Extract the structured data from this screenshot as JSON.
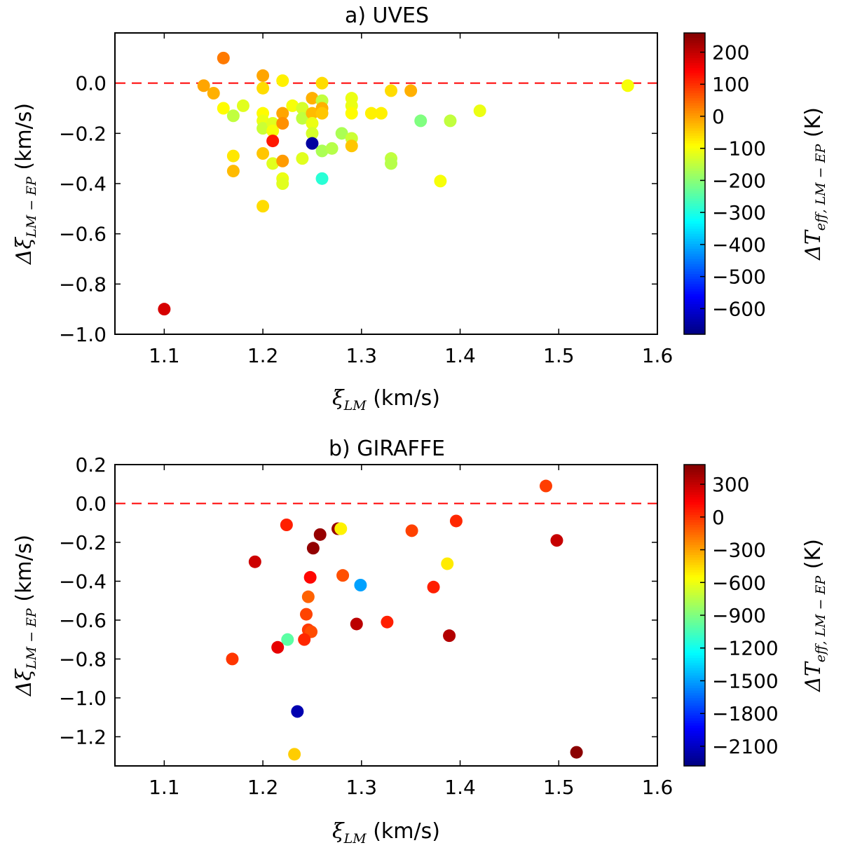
{
  "chart_data": [
    {
      "type": "scatter",
      "title": "a) UVES",
      "xlabel": "ξ_LM (km/s)",
      "xlabel_math": "ξ",
      "xlabel_math_sub": "LM",
      "xlabel_unit": " (km/s)",
      "ylabel_math": "Δξ",
      "ylabel_math_sub": "LM − EP",
      "ylabel_unit": " (km/s)",
      "xlim": [
        1.05,
        1.6
      ],
      "ylim": [
        -1.0,
        0.2
      ],
      "xticks": [
        1.1,
        1.2,
        1.3,
        1.4,
        1.5,
        1.6
      ],
      "xtick_labels": [
        "1.1",
        "1.2",
        "1.3",
        "1.4",
        "1.5",
        "1.6"
      ],
      "yticks": [
        -1.0,
        -0.8,
        -0.6,
        -0.4,
        -0.2,
        0.0
      ],
      "ytick_labels": [
        "−1.0",
        "−0.8",
        "−0.6",
        "−0.4",
        "−0.2",
        "0.0"
      ],
      "reference_line": {
        "y": 0.0,
        "style": "dashed",
        "color": "#ff0000"
      },
      "colorbar": {
        "label_math": "ΔT",
        "label_math_sub": "eff, LM − EP",
        "label_unit": " (K)",
        "colormap": "jet",
        "range": [
          -680,
          260
        ],
        "ticks": [
          200,
          100,
          0,
          -100,
          -200,
          -300,
          -400,
          -500,
          -600
        ],
        "tick_labels": [
          "200",
          "100",
          "0",
          "−100",
          "−200",
          "−300",
          "−400",
          "−500",
          "−600"
        ]
      },
      "points": [
        {
          "x": 1.16,
          "y": 0.1,
          "c": 30
        },
        {
          "x": 1.14,
          "y": -0.01,
          "c": -10
        },
        {
          "x": 1.15,
          "y": -0.04,
          "c": -20
        },
        {
          "x": 1.16,
          "y": -0.1,
          "c": -90
        },
        {
          "x": 1.17,
          "y": -0.13,
          "c": -150
        },
        {
          "x": 1.18,
          "y": -0.09,
          "c": -120
        },
        {
          "x": 1.17,
          "y": -0.29,
          "c": -70
        },
        {
          "x": 1.17,
          "y": -0.35,
          "c": -30
        },
        {
          "x": 1.1,
          "y": -0.9,
          "c": 180
        },
        {
          "x": 1.2,
          "y": 0.03,
          "c": -10
        },
        {
          "x": 1.2,
          "y": -0.02,
          "c": -60
        },
        {
          "x": 1.2,
          "y": -0.12,
          "c": -90
        },
        {
          "x": 1.2,
          "y": -0.15,
          "c": -110
        },
        {
          "x": 1.2,
          "y": -0.18,
          "c": -140
        },
        {
          "x": 1.21,
          "y": -0.16,
          "c": -120
        },
        {
          "x": 1.21,
          "y": -0.19,
          "c": -100
        },
        {
          "x": 1.2,
          "y": -0.28,
          "c": -40
        },
        {
          "x": 1.21,
          "y": -0.23,
          "c": 120
        },
        {
          "x": 1.21,
          "y": -0.32,
          "c": -120
        },
        {
          "x": 1.2,
          "y": -0.49,
          "c": -60
        },
        {
          "x": 1.22,
          "y": 0.01,
          "c": -80
        },
        {
          "x": 1.22,
          "y": -0.12,
          "c": -10
        },
        {
          "x": 1.22,
          "y": -0.16,
          "c": 10
        },
        {
          "x": 1.23,
          "y": -0.09,
          "c": -100
        },
        {
          "x": 1.22,
          "y": -0.31,
          "c": 0
        },
        {
          "x": 1.22,
          "y": -0.38,
          "c": -110
        },
        {
          "x": 1.22,
          "y": -0.4,
          "c": -120
        },
        {
          "x": 1.24,
          "y": -0.1,
          "c": -130
        },
        {
          "x": 1.24,
          "y": -0.14,
          "c": -150
        },
        {
          "x": 1.24,
          "y": -0.3,
          "c": -120
        },
        {
          "x": 1.25,
          "y": -0.06,
          "c": -20
        },
        {
          "x": 1.25,
          "y": -0.12,
          "c": -30
        },
        {
          "x": 1.25,
          "y": -0.16,
          "c": -110
        },
        {
          "x": 1.25,
          "y": -0.2,
          "c": -130
        },
        {
          "x": 1.25,
          "y": -0.24,
          "c": -650
        },
        {
          "x": 1.26,
          "y": 0.0,
          "c": -60
        },
        {
          "x": 1.26,
          "y": -0.07,
          "c": -150
        },
        {
          "x": 1.26,
          "y": -0.1,
          "c": -20
        },
        {
          "x": 1.26,
          "y": -0.12,
          "c": -40
        },
        {
          "x": 1.26,
          "y": -0.27,
          "c": -170
        },
        {
          "x": 1.26,
          "y": -0.38,
          "c": -290
        },
        {
          "x": 1.27,
          "y": -0.26,
          "c": -160
        },
        {
          "x": 1.28,
          "y": -0.2,
          "c": -170
        },
        {
          "x": 1.29,
          "y": -0.06,
          "c": -110
        },
        {
          "x": 1.29,
          "y": -0.09,
          "c": -110
        },
        {
          "x": 1.29,
          "y": -0.12,
          "c": -90
        },
        {
          "x": 1.29,
          "y": -0.22,
          "c": -140
        },
        {
          "x": 1.29,
          "y": -0.25,
          "c": -40
        },
        {
          "x": 1.31,
          "y": -0.12,
          "c": -80
        },
        {
          "x": 1.32,
          "y": -0.12,
          "c": -80
        },
        {
          "x": 1.33,
          "y": -0.03,
          "c": -60
        },
        {
          "x": 1.33,
          "y": -0.3,
          "c": -150
        },
        {
          "x": 1.33,
          "y": -0.32,
          "c": -160
        },
        {
          "x": 1.35,
          "y": -0.03,
          "c": -20
        },
        {
          "x": 1.36,
          "y": -0.15,
          "c": -210
        },
        {
          "x": 1.38,
          "y": -0.39,
          "c": -100
        },
        {
          "x": 1.39,
          "y": -0.15,
          "c": -150
        },
        {
          "x": 1.42,
          "y": -0.11,
          "c": -110
        },
        {
          "x": 1.57,
          "y": -0.01,
          "c": -100
        }
      ]
    },
    {
      "type": "scatter",
      "title": "b) GIRAFFE",
      "xlabel": "ξ_LM (km/s)",
      "xlabel_math": "ξ",
      "xlabel_math_sub": "LM",
      "xlabel_unit": " (km/s)",
      "ylabel_math": "Δξ",
      "ylabel_math_sub": "LM − EP",
      "ylabel_unit": " (km/s)",
      "xlim": [
        1.05,
        1.6
      ],
      "ylim": [
        -1.35,
        0.2
      ],
      "xticks": [
        1.1,
        1.2,
        1.3,
        1.4,
        1.5,
        1.6
      ],
      "xtick_labels": [
        "1.1",
        "1.2",
        "1.3",
        "1.4",
        "1.5",
        "1.6"
      ],
      "yticks": [
        -1.2,
        -1.0,
        -0.8,
        -0.6,
        -0.4,
        -0.2,
        0.0,
        0.2
      ],
      "ytick_labels": [
        "−1.2",
        "−1.0",
        "−0.8",
        "−0.6",
        "−0.4",
        "−0.2",
        "0.0",
        "0.2"
      ],
      "reference_line": {
        "y": 0.0,
        "style": "dashed",
        "color": "#ff0000"
      },
      "colorbar": {
        "label_math": "ΔT",
        "label_math_sub": "eff, LM − EP",
        "label_unit": " (K)",
        "colormap": "jet",
        "range": [
          -2280,
          480
        ],
        "ticks": [
          300,
          0,
          -300,
          -600,
          -900,
          -1200,
          -1500,
          -1800,
          -2100
        ],
        "tick_labels": [
          "300",
          "0",
          "−300",
          "−600",
          "−900",
          "−1200",
          "−1500",
          "−1800",
          "−2100"
        ]
      },
      "points": [
        {
          "x": 1.487,
          "y": 0.09,
          "c": -30
        },
        {
          "x": 1.224,
          "y": -0.11,
          "c": 50
        },
        {
          "x": 1.258,
          "y": -0.16,
          "c": 420
        },
        {
          "x": 1.276,
          "y": -0.13,
          "c": 420
        },
        {
          "x": 1.279,
          "y": -0.13,
          "c": -520
        },
        {
          "x": 1.251,
          "y": -0.23,
          "c": 430
        },
        {
          "x": 1.192,
          "y": -0.3,
          "c": 270
        },
        {
          "x": 1.248,
          "y": -0.38,
          "c": 120
        },
        {
          "x": 1.281,
          "y": -0.37,
          "c": -80
        },
        {
          "x": 1.299,
          "y": -0.42,
          "c": -1500
        },
        {
          "x": 1.351,
          "y": -0.14,
          "c": -40
        },
        {
          "x": 1.396,
          "y": -0.09,
          "c": 30
        },
        {
          "x": 1.498,
          "y": -0.19,
          "c": 290
        },
        {
          "x": 1.387,
          "y": -0.31,
          "c": -500
        },
        {
          "x": 1.373,
          "y": -0.43,
          "c": 50
        },
        {
          "x": 1.246,
          "y": -0.48,
          "c": -130
        },
        {
          "x": 1.244,
          "y": -0.57,
          "c": -50
        },
        {
          "x": 1.295,
          "y": -0.62,
          "c": 320
        },
        {
          "x": 1.326,
          "y": -0.61,
          "c": 50
        },
        {
          "x": 1.246,
          "y": -0.65,
          "c": -20
        },
        {
          "x": 1.249,
          "y": -0.66,
          "c": -70
        },
        {
          "x": 1.389,
          "y": -0.68,
          "c": 340
        },
        {
          "x": 1.242,
          "y": -0.7,
          "c": 30
        },
        {
          "x": 1.225,
          "y": -0.7,
          "c": -1000
        },
        {
          "x": 1.215,
          "y": -0.74,
          "c": 200
        },
        {
          "x": 1.169,
          "y": -0.8,
          "c": -10
        },
        {
          "x": 1.235,
          "y": -1.07,
          "c": -2150
        },
        {
          "x": 1.232,
          "y": -1.29,
          "c": -420
        },
        {
          "x": 1.518,
          "y": -1.28,
          "c": 450
        }
      ]
    }
  ]
}
